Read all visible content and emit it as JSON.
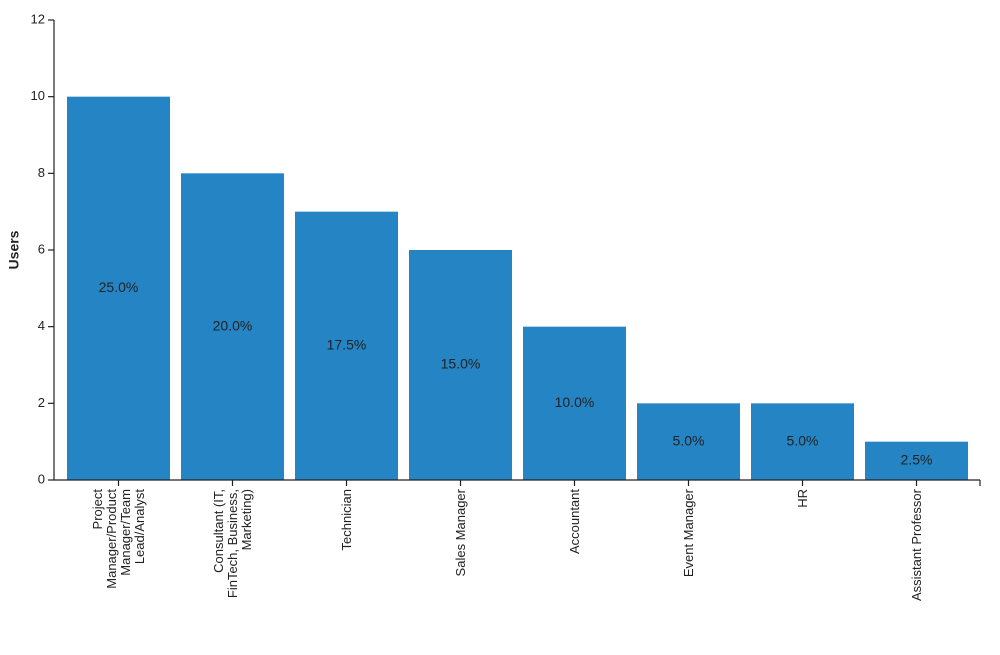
{
  "chart_data": {
    "type": "bar",
    "title": "",
    "xlabel": "",
    "ylabel": "Users",
    "ylim": [
      0,
      12
    ],
    "yticks": [
      0,
      2,
      4,
      6,
      8,
      10,
      12
    ],
    "grid": false,
    "legend": "none",
    "bar_color": "#2484c4",
    "categories": [
      [
        "Project",
        "Manager/Product",
        "Manager/Team",
        "Lead/Analyst"
      ],
      [
        "Consultant (IT,",
        "FinTech, Business,",
        "Marketing)"
      ],
      [
        "Technician"
      ],
      [
        "Sales Manager"
      ],
      [
        "Accountant"
      ],
      [
        "Event Manager"
      ],
      [
        "HR"
      ],
      [
        "Assistant Professor"
      ]
    ],
    "values": [
      10,
      8,
      7,
      6,
      4,
      2,
      2,
      1
    ],
    "data_labels": [
      "25.0%",
      "20.0%",
      "17.5%",
      "15.0%",
      "10.0%",
      "5.0%",
      "5.0%",
      "2.5%"
    ]
  }
}
